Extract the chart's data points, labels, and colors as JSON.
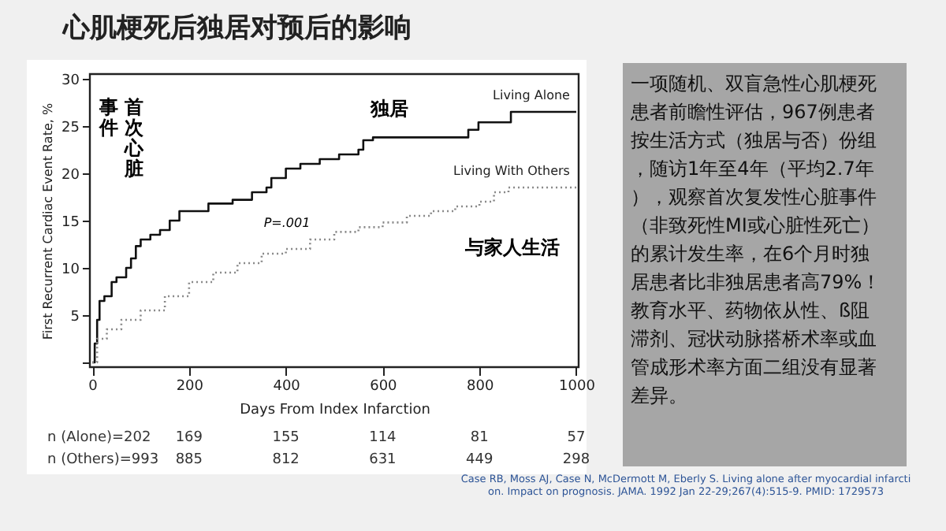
{
  "chart_data": {
    "type": "step",
    "title": "心肌梗死后独居对预后的影响",
    "xlabel": "Days From Index Infarction",
    "ylabel": "First Recurrent Cardiac Event Rate, %",
    "xlim": [
      -5,
      1005
    ],
    "ylim": [
      -0.5,
      30.5
    ],
    "xticks": [
      0,
      200,
      400,
      600,
      800,
      {
        "value": 1000,
        "label": "1000"
      }
    ],
    "yticks": [
      {
        "value": 0,
        "label": null
      },
      5,
      10,
      15,
      20,
      25,
      30
    ],
    "grid": false,
    "marker": "none",
    "series": [
      {
        "name": "Living Alone",
        "color": "#111111",
        "line_style": "solid",
        "x": [
          0,
          5,
          10,
          15,
          25,
          40,
          50,
          70,
          80,
          90,
          100,
          120,
          140,
          160,
          180,
          240,
          290,
          330,
          360,
          370,
          400,
          430,
          470,
          510,
          550,
          560,
          580,
          777,
          798,
          865,
          1000
        ],
        "values": [
          0,
          2,
          4.5,
          6.5,
          7,
          8.5,
          9,
          10,
          11,
          12.3,
          13,
          13.5,
          14,
          15,
          16,
          16.8,
          17.2,
          18,
          18.5,
          19.5,
          20.5,
          21,
          21.5,
          22,
          22.5,
          23.5,
          23.8,
          24.6,
          25.4,
          26.5,
          26.5
        ]
      },
      {
        "name": "Living With Others",
        "color": "#888888",
        "line_style": "dotted",
        "x": [
          0,
          10,
          30,
          60,
          100,
          150,
          200,
          250,
          300,
          350,
          400,
          450,
          500,
          550,
          600,
          650,
          700,
          750,
          800,
          830,
          860,
          1000
        ],
        "values": [
          0,
          2.5,
          3.5,
          4.5,
          5.5,
          7,
          8.5,
          9.5,
          10.5,
          11.5,
          12,
          13,
          13.8,
          14.3,
          14.8,
          15.5,
          16,
          16.5,
          17,
          18,
          18.5,
          18.5
        ]
      }
    ],
    "annotations": [
      "P=.001",
      "独居",
      "与家人生活",
      "首次心脏事件",
      "n (Alone)=202",
      "169",
      "155",
      "114",
      "81",
      "57",
      "n (Others)=993",
      "885",
      "812",
      "631",
      "449",
      "298",
      "一项随机、双盲急性心肌梗死患者前瞻性评估，967例患者按生活方式（独居与否）份组，随访1年至4年（平均2.7年），观察首次复发性心脏事件（非致死性MI或心脏性死亡）的累计发生率，在6个月时独居患者比非独居患者高79%！教育水平、药物依从性、ß阻滞剂、冠状动脉搭桥术率或血管成形术率方面二组没有显著差异。",
      "Case RB, Moss AJ, Case N, McDermott M, Eberly S. Living alone after myocardial infarction. Impact on prognosis. JAMA. 1992 Jan 22-29;267(4):515-9. PMID: 1729573"
    ]
  }
}
